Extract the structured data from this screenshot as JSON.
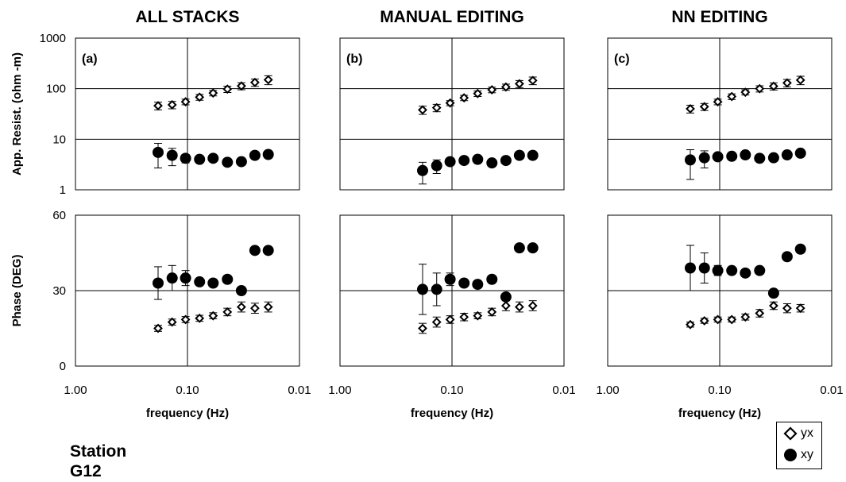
{
  "chart_data": {
    "type": "scatter",
    "x_scale": "log",
    "x_reversed": true,
    "xlim": [
      1.0,
      0.01
    ],
    "x_ticks": [
      1.0,
      0.1,
      0.01
    ],
    "x_tick_labels": [
      "1.00",
      "0.10",
      "0.01"
    ],
    "xlabel": "frequency (Hz)",
    "resist_ylabel": "App. Resist. (ohm -m)",
    "resist_ylim": [
      1,
      1000
    ],
    "resist_ticks": [
      1,
      10,
      100,
      1000
    ],
    "resist_tick_labels": [
      "1",
      "10",
      "100",
      "1000"
    ],
    "phase_ylabel": "Phase (DEG)",
    "phase_ylim": [
      0,
      60
    ],
    "phase_ticks": [
      0,
      30,
      60
    ],
    "phase_tick_labels": [
      "0",
      "30",
      "60"
    ],
    "frequencies": [
      0.183,
      0.137,
      0.104,
      0.078,
      0.059,
      0.044,
      0.033,
      0.025,
      0.019
    ],
    "columns": [
      {
        "title": "ALL STACKS",
        "panel": "(a)",
        "resistivity": {
          "yx": {
            "values": [
              46,
              48,
              55,
              68,
              82,
              98,
              113,
              133,
              150
            ],
            "err": [
              8,
              8,
              7,
              9,
              10,
              14,
              18,
              22,
              30
            ]
          },
          "xy": {
            "values": [
              5.5,
              4.8,
              4.2,
              4.0,
              4.2,
              3.5,
              3.6,
              4.8,
              5.0
            ],
            "err": [
              2.8,
              1.8,
              0.8,
              0.4,
              0.4,
              0.3,
              0.3,
              0.4,
              0.4
            ]
          }
        },
        "phase": {
          "yx": {
            "values": [
              15,
              17.5,
              18.5,
              19,
              20,
              21.5,
              23.5,
              23,
              23.5
            ],
            "err": [
              1.2,
              1.2,
              1.2,
              1.2,
              1.2,
              1.5,
              2,
              2,
              2
            ]
          },
          "xy": {
            "values": [
              33,
              35,
              35,
              33.5,
              33,
              34.5,
              30,
              46,
              46
            ],
            "err": [
              6.5,
              5,
              3,
              1,
              1,
              1,
              0.5,
              0.5,
              0.5
            ]
          }
        }
      },
      {
        "title": "MANUAL EDITING",
        "panel": "(b)",
        "resistivity": {
          "yx": {
            "values": [
              38,
              42,
              52,
              66,
              80,
              95,
              108,
              125,
              145
            ],
            "err": [
              7,
              7,
              6,
              8,
              10,
              12,
              15,
              20,
              25
            ]
          },
          "xy": {
            "values": [
              2.4,
              3.0,
              3.6,
              3.8,
              4.0,
              3.4,
              3.8,
              4.8,
              4.8
            ],
            "err": [
              1.1,
              0.9,
              0.4,
              0.3,
              0.3,
              0.3,
              0.3,
              0.3,
              0.3
            ]
          }
        },
        "phase": {
          "yx": {
            "values": [
              15,
              17.5,
              18.5,
              19.5,
              20,
              21.5,
              24,
              23.5,
              24
            ],
            "err": [
              2,
              2,
              1.5,
              1.5,
              1.2,
              1.5,
              2,
              2,
              2
            ]
          },
          "xy": {
            "values": [
              30.5,
              30.5,
              34.5,
              33,
              32.5,
              34.5,
              27.5,
              47,
              47
            ],
            "err": [
              10,
              6.5,
              2.5,
              1,
              1,
              1,
              0.5,
              0.5,
              0.5
            ]
          }
        }
      },
      {
        "title": "NN EDITING",
        "panel": "(c)",
        "resistivity": {
          "yx": {
            "values": [
              40,
              44,
              55,
              70,
              85,
              100,
              112,
              130,
              148
            ],
            "err": [
              7,
              7,
              7,
              9,
              10,
              14,
              18,
              22,
              28
            ]
          },
          "xy": {
            "values": [
              3.9,
              4.3,
              4.5,
              4.6,
              4.9,
              4.2,
              4.3,
              4.9,
              5.3
            ],
            "err": [
              2.3,
              1.6,
              0.6,
              0.3,
              0.3,
              0.3,
              0.3,
              0.3,
              0.3
            ]
          }
        },
        "phase": {
          "yx": {
            "values": [
              16.5,
              18,
              18.5,
              18.5,
              19.5,
              21,
              24,
              23,
              23
            ],
            "err": [
              1,
              1,
              1,
              1,
              1.2,
              1.5,
              1.5,
              1.8,
              1.5
            ]
          },
          "xy": {
            "values": [
              39,
              39,
              38,
              38,
              37,
              38,
              29,
              43.5,
              46.5
            ],
            "err": [
              9,
              6,
              2,
              1,
              1,
              1,
              0.5,
              0.5,
              0.5
            ]
          }
        }
      }
    ],
    "legend": [
      {
        "name": "yx",
        "marker": "open-diamond"
      },
      {
        "name": "xy",
        "marker": "filled-circle"
      }
    ],
    "legend_position": "bottom-right",
    "grid": "center crosshair lines",
    "colors": {
      "marker": "#000000",
      "axis": "#000000",
      "background": "#ffffff"
    }
  },
  "station": {
    "line1": "Station",
    "line2": "G12"
  }
}
